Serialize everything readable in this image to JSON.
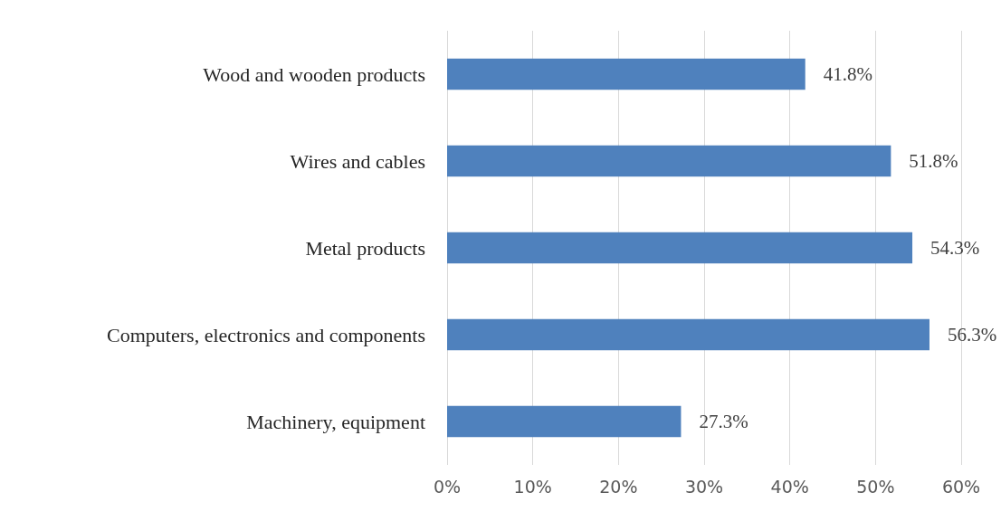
{
  "chart_data": {
    "type": "bar",
    "orientation": "horizontal",
    "categories": [
      "Wood and wooden products",
      "Wires and cables",
      "Metal products",
      "Computers, electronics and components",
      "Machinery, equipment"
    ],
    "values": [
      41.8,
      51.8,
      54.3,
      56.3,
      27.3
    ],
    "value_labels": [
      "41.8%",
      "51.8%",
      "54.3%",
      "56.3%",
      "27.3%"
    ],
    "color": "#4f81bd",
    "xlim": [
      0,
      60
    ],
    "xticks": [
      {
        "value": 0,
        "label": "0%"
      },
      {
        "value": 10,
        "label": "10%"
      },
      {
        "value": 20,
        "label": "20%"
      },
      {
        "value": 30,
        "label": "30%"
      },
      {
        "value": 40,
        "label": "40%"
      },
      {
        "value": 50,
        "label": "50%"
      },
      {
        "value": 60,
        "label": "60%"
      }
    ],
    "grid": "x"
  }
}
